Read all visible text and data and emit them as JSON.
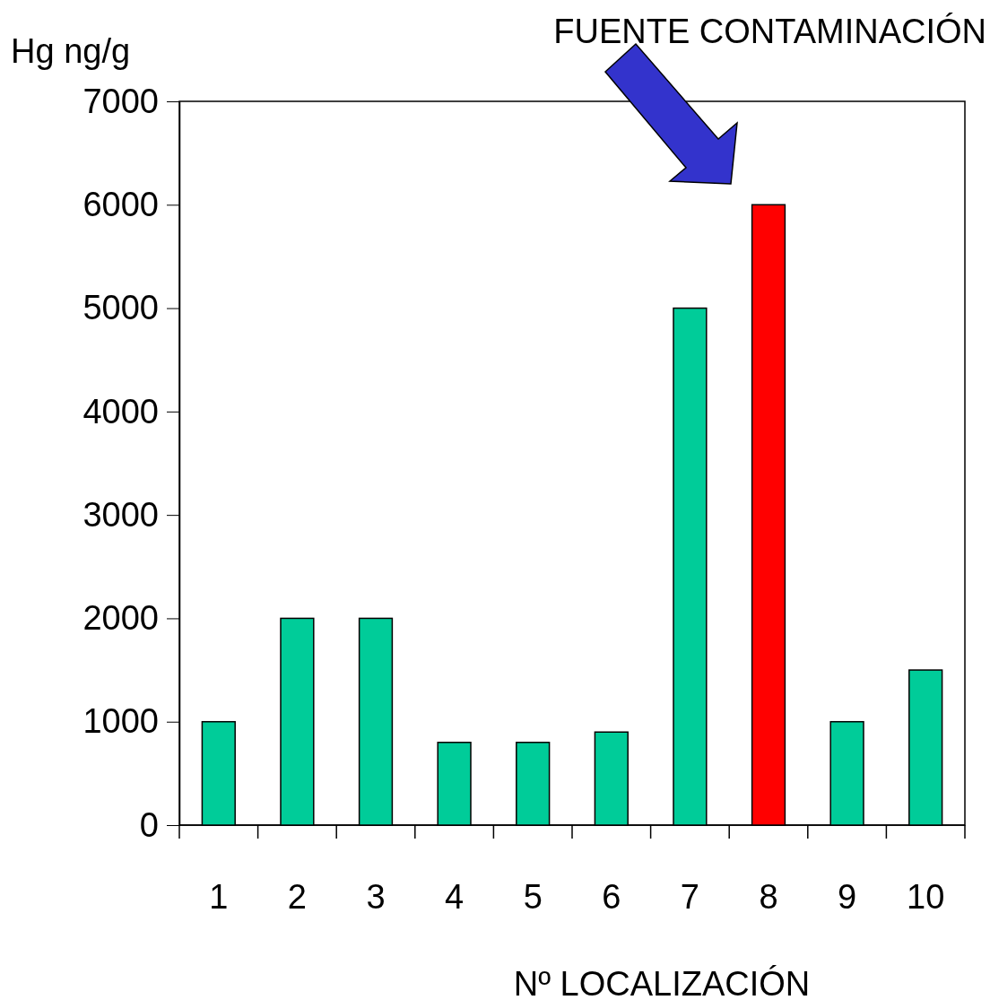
{
  "chart_data": {
    "type": "bar",
    "xlabel": "Nº LOCALIZACIÓN",
    "ylabel": "Hg ng/g",
    "categories": [
      "1",
      "2",
      "3",
      "4",
      "5",
      "6",
      "7",
      "8",
      "9",
      "10"
    ],
    "values": [
      1000,
      2000,
      2000,
      800,
      800,
      900,
      5000,
      6000,
      1000,
      1500
    ],
    "colors": [
      "#00cc99",
      "#00cc99",
      "#00cc99",
      "#00cc99",
      "#00cc99",
      "#00cc99",
      "#00cc99",
      "#ff0000",
      "#00cc99",
      "#00cc99"
    ],
    "ylim": [
      0,
      7000
    ],
    "yticks": [
      0,
      1000,
      2000,
      3000,
      4000,
      5000,
      6000,
      7000
    ],
    "annotations": [
      "FUENTE CONTAMINACIÓN"
    ]
  }
}
